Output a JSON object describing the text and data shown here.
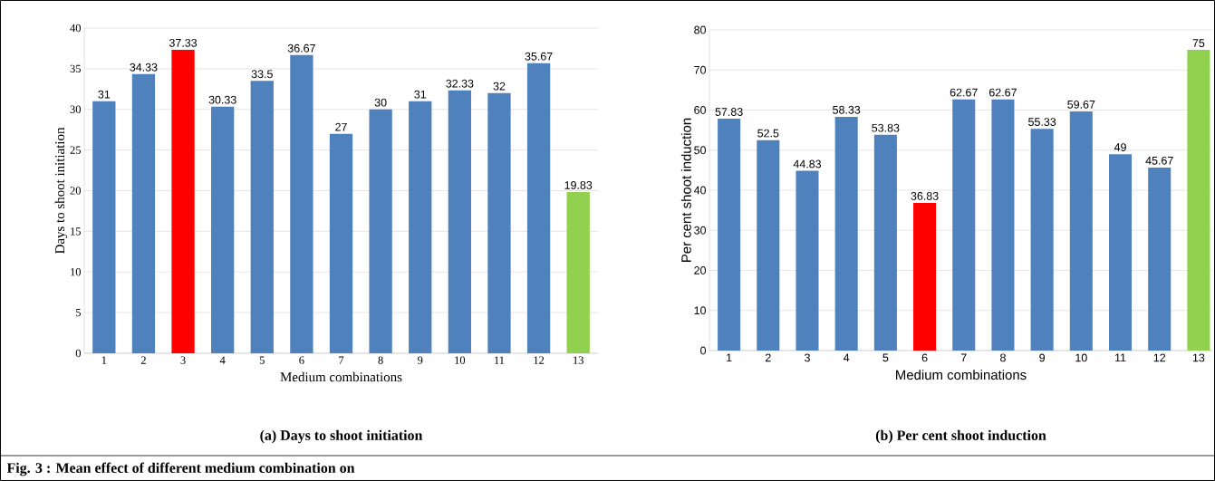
{
  "chart_data": [
    {
      "type": "bar",
      "title": "(a) Days to shoot initiation",
      "xlabel": "Medium combinations",
      "ylabel": "Days to shoot initiation",
      "categories": [
        "1",
        "2",
        "3",
        "4",
        "5",
        "6",
        "7",
        "8",
        "9",
        "10",
        "11",
        "12",
        "13"
      ],
      "values": [
        31,
        34.33,
        37.33,
        30.33,
        33.5,
        36.67,
        27,
        30,
        31,
        32.33,
        32,
        35.67,
        19.83
      ],
      "colors": [
        "#4f81bd",
        "#4f81bd",
        "#ff0000",
        "#4f81bd",
        "#4f81bd",
        "#4f81bd",
        "#4f81bd",
        "#4f81bd",
        "#4f81bd",
        "#4f81bd",
        "#4f81bd",
        "#4f81bd",
        "#92d050"
      ],
      "ylim": [
        0,
        40
      ],
      "yticks": [
        0,
        5,
        10,
        15,
        20,
        25,
        30,
        35,
        40
      ],
      "grid": "y",
      "data_labels": true,
      "annotations": [
        "Fig. 3 : Mean effect of different medium combination on"
      ]
    },
    {
      "type": "bar",
      "title": "(b) Per cent shoot induction",
      "xlabel": "Medium combinations",
      "ylabel": "Per cent shoot induction",
      "categories": [
        "1",
        "2",
        "3",
        "4",
        "5",
        "6",
        "7",
        "8",
        "9",
        "10",
        "11",
        "12",
        "13"
      ],
      "values": [
        57.83,
        52.5,
        44.83,
        58.33,
        53.83,
        36.83,
        62.67,
        62.67,
        55.33,
        59.67,
        49,
        45.67,
        75
      ],
      "colors": [
        "#4f81bd",
        "#4f81bd",
        "#4f81bd",
        "#4f81bd",
        "#4f81bd",
        "#ff0000",
        "#4f81bd",
        "#4f81bd",
        "#4f81bd",
        "#4f81bd",
        "#4f81bd",
        "#4f81bd",
        "#92d050"
      ],
      "ylim": [
        0,
        80
      ],
      "yticks": [
        0,
        10,
        20,
        30,
        40,
        50,
        60,
        70,
        80
      ],
      "grid": "y",
      "data_labels": true
    }
  ]
}
